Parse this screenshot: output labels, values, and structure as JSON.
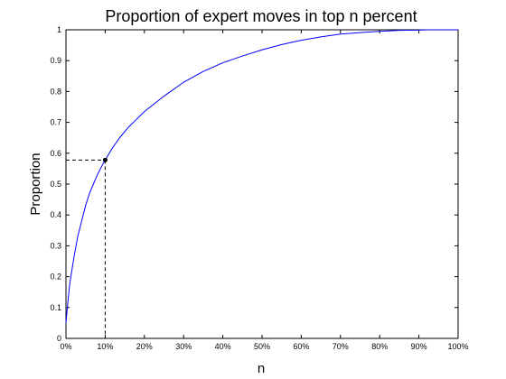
{
  "chart_data": {
    "type": "line",
    "title": "Proportion of expert moves in top n percent",
    "xlabel": "n",
    "ylabel": "Proportion",
    "xlim": [
      0,
      100
    ],
    "ylim": [
      0,
      1
    ],
    "x_ticks": [
      0,
      10,
      20,
      30,
      40,
      50,
      60,
      70,
      80,
      90,
      100
    ],
    "x_tick_labels": [
      "0%",
      "10%",
      "20%",
      "30%",
      "40%",
      "50%",
      "60%",
      "70%",
      "80%",
      "90%",
      "100%"
    ],
    "y_ticks": [
      0,
      0.1,
      0.2,
      0.3,
      0.4,
      0.5,
      0.6,
      0.7,
      0.8,
      0.9,
      1
    ],
    "y_tick_labels": [
      "0",
      "0.1",
      "0.2",
      "0.3",
      "0.4",
      "0.5",
      "0.6",
      "0.7",
      "0.8",
      "0.9",
      "1"
    ],
    "grid": false,
    "series": [
      {
        "color": "#0000ff",
        "x": [
          0,
          0.5,
          1,
          2,
          3,
          4,
          5,
          6,
          7,
          8,
          9,
          10,
          12,
          14,
          16,
          18,
          20,
          25,
          30,
          35,
          40,
          45,
          50,
          55,
          60,
          65,
          70,
          75,
          80,
          85,
          90,
          92,
          95,
          100
        ],
        "y": [
          0.05,
          0.12,
          0.18,
          0.26,
          0.33,
          0.38,
          0.43,
          0.47,
          0.5,
          0.53,
          0.555,
          0.578,
          0.62,
          0.655,
          0.685,
          0.71,
          0.735,
          0.785,
          0.83,
          0.865,
          0.893,
          0.915,
          0.935,
          0.952,
          0.966,
          0.977,
          0.986,
          0.991,
          0.995,
          0.998,
          0.999,
          1.0,
          1.0,
          1.0
        ]
      }
    ],
    "highlight_point": {
      "x": 10,
      "y": 0.578,
      "color": "#000000"
    }
  }
}
